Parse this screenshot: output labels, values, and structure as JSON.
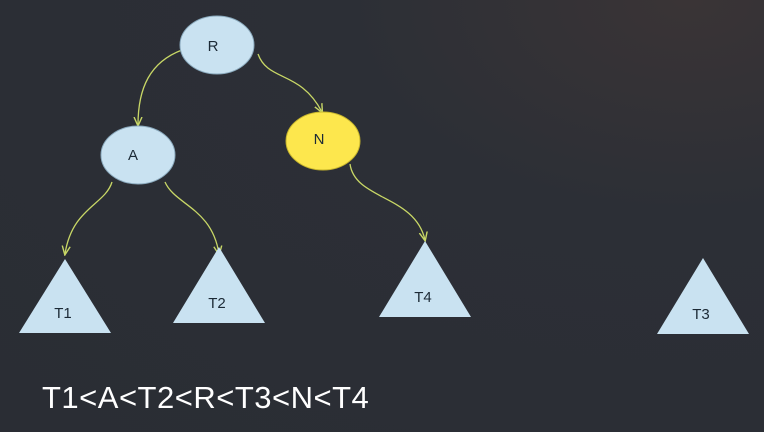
{
  "nodes": {
    "R": {
      "label": "R",
      "color": "#c9e2f1"
    },
    "A": {
      "label": "A",
      "color": "#c9e2f1"
    },
    "N": {
      "label": "N",
      "color": "#fde74d"
    }
  },
  "subtrees": {
    "T1": {
      "label": "T1",
      "color": "#c9e2f1"
    },
    "T2": {
      "label": "T2",
      "color": "#c9e2f1"
    },
    "T3": {
      "label": "T3",
      "color": "#c9e2f1"
    },
    "T4": {
      "label": "T4",
      "color": "#c9e2f1"
    }
  },
  "edge_color": "#c8d766",
  "background_color": "#2b2e35",
  "ordering_caption": "T1<A<T2<R<T3<N<T4"
}
